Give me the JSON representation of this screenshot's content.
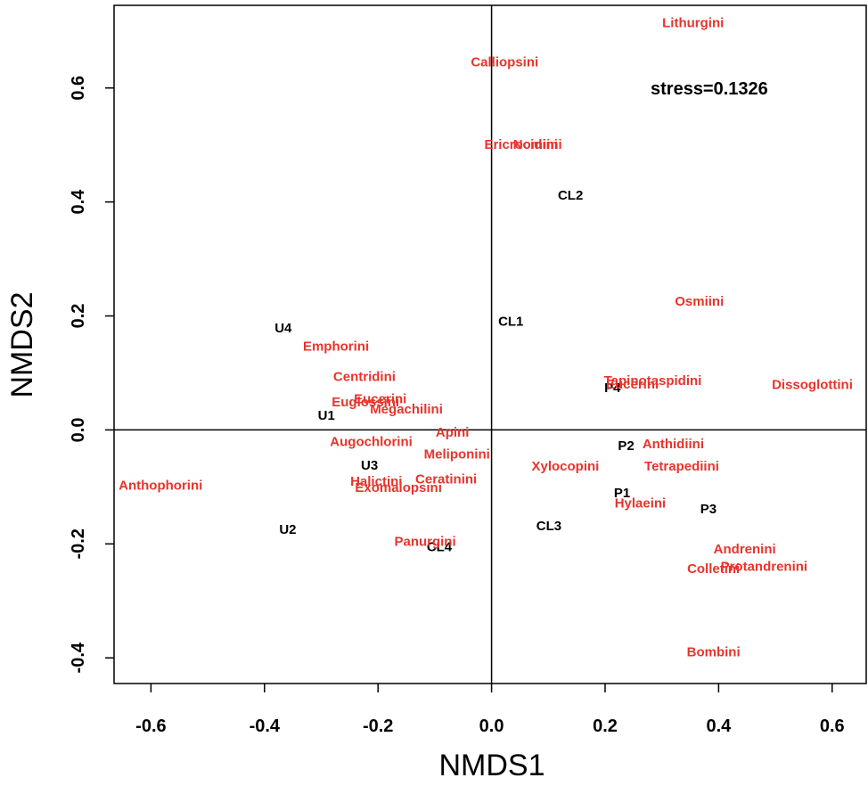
{
  "chart_data": {
    "type": "scatter",
    "xlabel": "NMDS1",
    "ylabel": "NMDS2",
    "annotation": "stress=0.1326",
    "xlim": [
      -0.665,
      0.66
    ],
    "ylim": [
      -0.445,
      0.745
    ],
    "x_ticks": [
      -0.6,
      -0.4,
      -0.2,
      0.0,
      0.2,
      0.4,
      0.6
    ],
    "x_tick_labels": [
      "-0.6",
      "-0.4",
      "-0.2",
      "0.0",
      "0.2",
      "0.4",
      "0.6"
    ],
    "y_ticks": [
      -0.4,
      -0.2,
      0.0,
      0.2,
      0.4,
      0.6
    ],
    "y_tick_labels": [
      "-0.4",
      "-0.2",
      "0.0",
      "0.2",
      "0.4",
      "0.6"
    ],
    "reference_lines": {
      "x": 0.0,
      "y": 0.0
    },
    "colors": {
      "sites": "#000000",
      "tribes": "#e8342c",
      "axes": "#000000"
    },
    "series": [
      {
        "group": "sites",
        "points": [
          {
            "label": "U4",
            "x": -0.367,
            "y": 0.178
          },
          {
            "label": "U1",
            "x": -0.291,
            "y": 0.025
          },
          {
            "label": "U3",
            "x": -0.215,
            "y": -0.063
          },
          {
            "label": "U2",
            "x": -0.359,
            "y": -0.175
          },
          {
            "label": "CL1",
            "x": 0.034,
            "y": 0.19
          },
          {
            "label": "CL2",
            "x": 0.139,
            "y": 0.411
          },
          {
            "label": "CL3",
            "x": 0.101,
            "y": -0.169
          },
          {
            "label": "CL4",
            "x": -0.092,
            "y": -0.206
          },
          {
            "label": "P4",
            "x": 0.213,
            "y": 0.073
          },
          {
            "label": "P2",
            "x": 0.237,
            "y": -0.028
          },
          {
            "label": "P1",
            "x": 0.23,
            "y": -0.111
          },
          {
            "label": "P3",
            "x": 0.382,
            "y": -0.139
          }
        ]
      },
      {
        "group": "tribes",
        "points": [
          {
            "label": "Lithurgini",
            "x": 0.355,
            "y": 0.714
          },
          {
            "label": "Calliopsini",
            "x": 0.023,
            "y": 0.645
          },
          {
            "label": "Ericrocidini",
            "x": 0.052,
            "y": 0.5
          },
          {
            "label": "Nomiini",
            "x": 0.081,
            "y": 0.5
          },
          {
            "label": "Osmiini",
            "x": 0.366,
            "y": 0.225
          },
          {
            "label": "Tapinotaspidini",
            "x": 0.284,
            "y": 0.086
          },
          {
            "label": "Eucerini (P)",
            "x": 0.248,
            "y": 0.08
          },
          {
            "label": "Dissoglottini",
            "x": 0.565,
            "y": 0.079
          },
          {
            "label": "Emphorini",
            "x": -0.274,
            "y": 0.146
          },
          {
            "label": "Centridini",
            "x": -0.224,
            "y": 0.093
          },
          {
            "label": "Eucerini",
            "x": -0.196,
            "y": 0.054
          },
          {
            "label": "Euglossini",
            "x": -0.222,
            "y": 0.048
          },
          {
            "label": "Megachilini",
            "x": -0.15,
            "y": 0.036
          },
          {
            "label": "Augochlorini",
            "x": -0.212,
            "y": -0.021
          },
          {
            "label": "Apini",
            "x": -0.069,
            "y": -0.005
          },
          {
            "label": "Meliponini",
            "x": -0.061,
            "y": -0.043
          },
          {
            "label": "Halictini",
            "x": -0.203,
            "y": -0.091
          },
          {
            "label": "Exomalopsini",
            "x": -0.164,
            "y": -0.102
          },
          {
            "label": "Ceratinini",
            "x": -0.08,
            "y": -0.087
          },
          {
            "label": "Xylocopini",
            "x": 0.13,
            "y": -0.064
          },
          {
            "label": "Anthidiini",
            "x": 0.32,
            "y": -0.025
          },
          {
            "label": "Tetrapediini",
            "x": 0.335,
            "y": -0.064
          },
          {
            "label": "Hylaeini",
            "x": 0.262,
            "y": -0.129
          },
          {
            "label": "Anthophorini",
            "x": -0.583,
            "y": -0.098
          },
          {
            "label": "Panurgini",
            "x": -0.117,
            "y": -0.196
          },
          {
            "label": "Andrenini",
            "x": 0.446,
            "y": -0.21
          },
          {
            "label": "Protandrenini",
            "x": 0.48,
            "y": -0.24
          },
          {
            "label": "Colletini",
            "x": 0.391,
            "y": -0.244
          },
          {
            "label": "Bombini",
            "x": 0.391,
            "y": -0.39
          }
        ]
      }
    ]
  }
}
